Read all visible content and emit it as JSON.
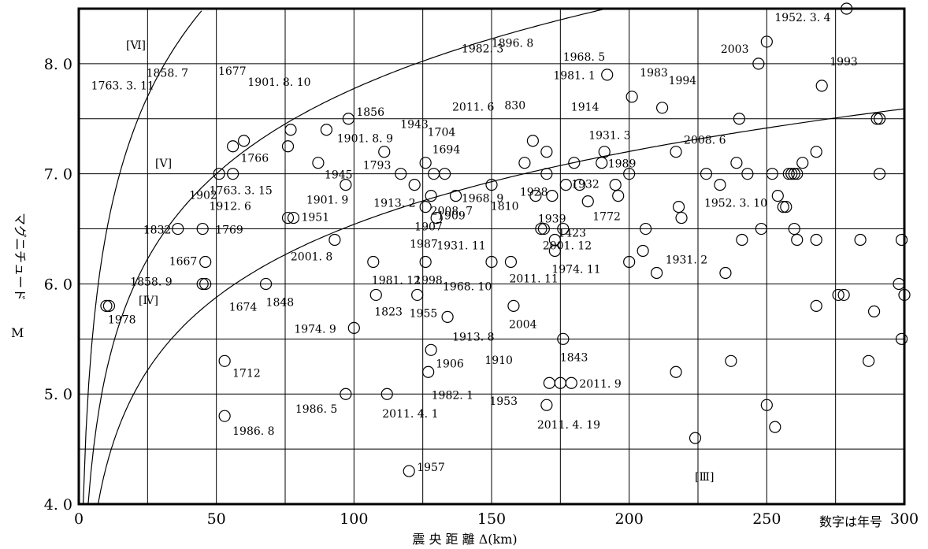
{
  "chart_data": {
    "type": "scatter",
    "xlabel": "震 央 距 離 Δ(km)",
    "ylabel": "マグニチュード",
    "ylabel_sym": "M",
    "note": "数字は年号",
    "xlim": [
      0,
      300
    ],
    "ylim": [
      4.0,
      8.5
    ],
    "x_ticks": [
      "0",
      "50",
      "100",
      "150",
      "200",
      "250",
      "300"
    ],
    "y_ticks": [
      "4.0",
      "5.0",
      "6.0",
      "7.0",
      "8.0"
    ],
    "zones": [
      "[Ⅵ]",
      "[Ⅴ]",
      "[Ⅳ]",
      "[Ⅲ]"
    ],
    "points": [
      {
        "x": 10,
        "y": 5.8,
        "label": "1978"
      },
      {
        "x": 11,
        "y": 5.8,
        "label": ""
      },
      {
        "x": 36,
        "y": 6.5,
        "label": "1832"
      },
      {
        "x": 45,
        "y": 6.5,
        "label": "1769"
      },
      {
        "x": 46,
        "y": 6.2,
        "label": "1667"
      },
      {
        "x": 45,
        "y": 6.0,
        "label": "1858.9"
      },
      {
        "x": 46,
        "y": 6.0,
        "label": "1674"
      },
      {
        "x": 51,
        "y": 7.0,
        "label": "1902"
      },
      {
        "x": 56,
        "y": 7.0,
        "label": "1763.3.15"
      },
      {
        "x": 56,
        "y": 7.25,
        "label": "1763.3.11"
      },
      {
        "x": 60,
        "y": 7.3,
        "label": "1858.7"
      },
      {
        "x": 53,
        "y": 5.3,
        "label": "1712"
      },
      {
        "x": 53,
        "y": 4.8,
        "label": "1986.8"
      },
      {
        "x": 68,
        "y": 6.0,
        "label": "1848"
      },
      {
        "x": 76,
        "y": 7.25,
        "label": "1766"
      },
      {
        "x": 77,
        "y": 7.4,
        "label": "1677"
      },
      {
        "x": 76,
        "y": 6.6,
        "label": "1912.6"
      },
      {
        "x": 78,
        "y": 6.6,
        "label": "1951"
      },
      {
        "x": 87,
        "y": 7.1,
        "label": "1945"
      },
      {
        "x": 90,
        "y": 7.4,
        "label": "1901.8.10"
      },
      {
        "x": 93,
        "y": 6.4,
        "label": "2001.8"
      },
      {
        "x": 97,
        "y": 6.9,
        "label": "1901.9"
      },
      {
        "x": 98,
        "y": 7.5,
        "label": "1856"
      },
      {
        "x": 100,
        "y": 5.6,
        "label": "1974.9"
      },
      {
        "x": 97,
        "y": 5.0,
        "label": "1986.5"
      },
      {
        "x": 107,
        "y": 6.2,
        "label": "1981.12"
      },
      {
        "x": 108,
        "y": 5.9,
        "label": "1823"
      },
      {
        "x": 111,
        "y": 7.2,
        "label": "1901.8.9"
      },
      {
        "x": 112,
        "y": 5.0,
        "label": "2011.4.1"
      },
      {
        "x": 117,
        "y": 7.0,
        "label": "1793"
      },
      {
        "x": 122,
        "y": 6.9,
        "label": "1913.2"
      },
      {
        "x": 123,
        "y": 5.9,
        "label": "1955"
      },
      {
        "x": 126,
        "y": 7.1,
        "label": "1943"
      },
      {
        "x": 126,
        "y": 6.7,
        "label": "1907"
      },
      {
        "x": 126,
        "y": 6.2,
        "label": "1998"
      },
      {
        "x": 127,
        "y": 5.2,
        "label": "1982.1"
      },
      {
        "x": 128,
        "y": 5.4,
        "label": "1906"
      },
      {
        "x": 128,
        "y": 6.8,
        "label": "1909"
      },
      {
        "x": 129,
        "y": 7.0,
        "label": "1704"
      },
      {
        "x": 130,
        "y": 6.6,
        "label": "1987"
      },
      {
        "x": 133,
        "y": 7.0,
        "label": "1694"
      },
      {
        "x": 134,
        "y": 5.7,
        "label": "1913.8"
      },
      {
        "x": 137,
        "y": 6.8,
        "label": "2008.7"
      },
      {
        "x": 150,
        "y": 6.2,
        "label": "1968.10"
      },
      {
        "x": 150,
        "y": 6.9,
        "label": "2011.6"
      },
      {
        "x": 157,
        "y": 6.2,
        "label": "2011.11"
      },
      {
        "x": 158,
        "y": 5.8,
        "label": "2004"
      },
      {
        "x": 162,
        "y": 7.1,
        "label": "1982.3"
      },
      {
        "x": 165,
        "y": 7.3,
        "label": "830"
      },
      {
        "x": 166,
        "y": 6.8,
        "label": "1968.9"
      },
      {
        "x": 168,
        "y": 6.5,
        "label": "1810"
      },
      {
        "x": 169,
        "y": 6.5,
        "label": "1931.11"
      },
      {
        "x": 170,
        "y": 7.0,
        "label": "1928"
      },
      {
        "x": 170,
        "y": 7.2,
        "label": "1896.8"
      },
      {
        "x": 170,
        "y": 4.9,
        "label": "2011.4.19"
      },
      {
        "x": 171,
        "y": 5.1,
        "label": "1953"
      },
      {
        "x": 172,
        "y": 6.8,
        "label": "1939"
      },
      {
        "x": 173,
        "y": 6.4,
        "label": "1423"
      },
      {
        "x": 173,
        "y": 6.3,
        "label": "1974.11"
      },
      {
        "x": 175,
        "y": 5.1,
        "label": "1910"
      },
      {
        "x": 176,
        "y": 5.5,
        "label": "1843"
      },
      {
        "x": 176,
        "y": 6.5,
        "label": "2001.12"
      },
      {
        "x": 177,
        "y": 6.9,
        "label": "1981.1"
      },
      {
        "x": 179,
        "y": 5.1,
        "label": "2011.9"
      },
      {
        "x": 180,
        "y": 7.1,
        "label": "1914"
      },
      {
        "x": 182,
        "y": 6.9,
        "label": ""
      },
      {
        "x": 185,
        "y": 6.75,
        "label": "1772"
      },
      {
        "x": 190,
        "y": 7.1,
        "label": "1989"
      },
      {
        "x": 191,
        "y": 7.2,
        "label": "1931.3"
      },
      {
        "x": 192,
        "y": 7.9,
        "label": "1968.5"
      },
      {
        "x": 195,
        "y": 6.9,
        "label": "1932"
      },
      {
        "x": 196,
        "y": 6.8,
        "label": "1931.2"
      },
      {
        "x": 200,
        "y": 7.0,
        "label": ""
      },
      {
        "x": 200,
        "y": 6.2,
        "label": ""
      },
      {
        "x": 201,
        "y": 7.7,
        "label": "1983"
      },
      {
        "x": 205,
        "y": 6.3,
        "label": ""
      },
      {
        "x": 206,
        "y": 6.5,
        "label": ""
      },
      {
        "x": 210,
        "y": 6.1,
        "label": ""
      },
      {
        "x": 212,
        "y": 7.6,
        "label": "1994"
      },
      {
        "x": 217,
        "y": 7.2,
        "label": "2008.6"
      },
      {
        "x": 218,
        "y": 6.7,
        "label": ""
      },
      {
        "x": 219,
        "y": 6.6,
        "label": ""
      },
      {
        "x": 217,
        "y": 5.2,
        "label": ""
      },
      {
        "x": 224,
        "y": 4.6,
        "label": ""
      },
      {
        "x": 228,
        "y": 7.0,
        "label": ""
      },
      {
        "x": 233,
        "y": 6.9,
        "label": "1952.3.10"
      },
      {
        "x": 235,
        "y": 6.1,
        "label": ""
      },
      {
        "x": 237,
        "y": 5.3,
        "label": ""
      },
      {
        "x": 239,
        "y": 7.1,
        "label": ""
      },
      {
        "x": 240,
        "y": 7.5,
        "label": ""
      },
      {
        "x": 241,
        "y": 6.4,
        "label": ""
      },
      {
        "x": 243,
        "y": 7.0,
        "label": ""
      },
      {
        "x": 247,
        "y": 8.0,
        "label": "2003"
      },
      {
        "x": 248,
        "y": 6.5,
        "label": ""
      },
      {
        "x": 250,
        "y": 8.2,
        "label": "1952.3.4"
      },
      {
        "x": 250,
        "y": 4.9,
        "label": ""
      },
      {
        "x": 252,
        "y": 7.0,
        "label": ""
      },
      {
        "x": 253,
        "y": 4.7,
        "label": ""
      },
      {
        "x": 254,
        "y": 6.8,
        "label": ""
      },
      {
        "x": 256,
        "y": 6.7,
        "label": ""
      },
      {
        "x": 257,
        "y": 6.7,
        "label": ""
      },
      {
        "x": 258,
        "y": 7.0,
        "label": ""
      },
      {
        "x": 259,
        "y": 7.0,
        "label": ""
      },
      {
        "x": 260,
        "y": 7.0,
        "label": ""
      },
      {
        "x": 260,
        "y": 6.5,
        "label": ""
      },
      {
        "x": 261,
        "y": 6.4,
        "label": ""
      },
      {
        "x": 261,
        "y": 7.0,
        "label": ""
      },
      {
        "x": 263,
        "y": 7.1,
        "label": ""
      },
      {
        "x": 268,
        "y": 7.2,
        "label": ""
      },
      {
        "x": 268,
        "y": 6.4,
        "label": ""
      },
      {
        "x": 268,
        "y": 5.8,
        "label": ""
      },
      {
        "x": 270,
        "y": 7.8,
        "label": "1993"
      },
      {
        "x": 276,
        "y": 5.9,
        "label": ""
      },
      {
        "x": 278,
        "y": 5.9,
        "label": ""
      },
      {
        "x": 279,
        "y": 8.5,
        "label": ""
      },
      {
        "x": 284,
        "y": 6.4,
        "label": ""
      },
      {
        "x": 287,
        "y": 5.3,
        "label": ""
      },
      {
        "x": 289,
        "y": 5.75,
        "label": ""
      },
      {
        "x": 290,
        "y": 7.5,
        "label": ""
      },
      {
        "x": 291,
        "y": 7.5,
        "label": ""
      },
      {
        "x": 291,
        "y": 7.0,
        "label": ""
      },
      {
        "x": 298,
        "y": 6.0,
        "label": ""
      },
      {
        "x": 299,
        "y": 5.5,
        "label": ""
      },
      {
        "x": 299,
        "y": 6.4,
        "label": ""
      },
      {
        "x": 300,
        "y": 5.9,
        "label": ""
      },
      {
        "x": 120,
        "y": 4.3,
        "label": "1957"
      }
    ]
  }
}
